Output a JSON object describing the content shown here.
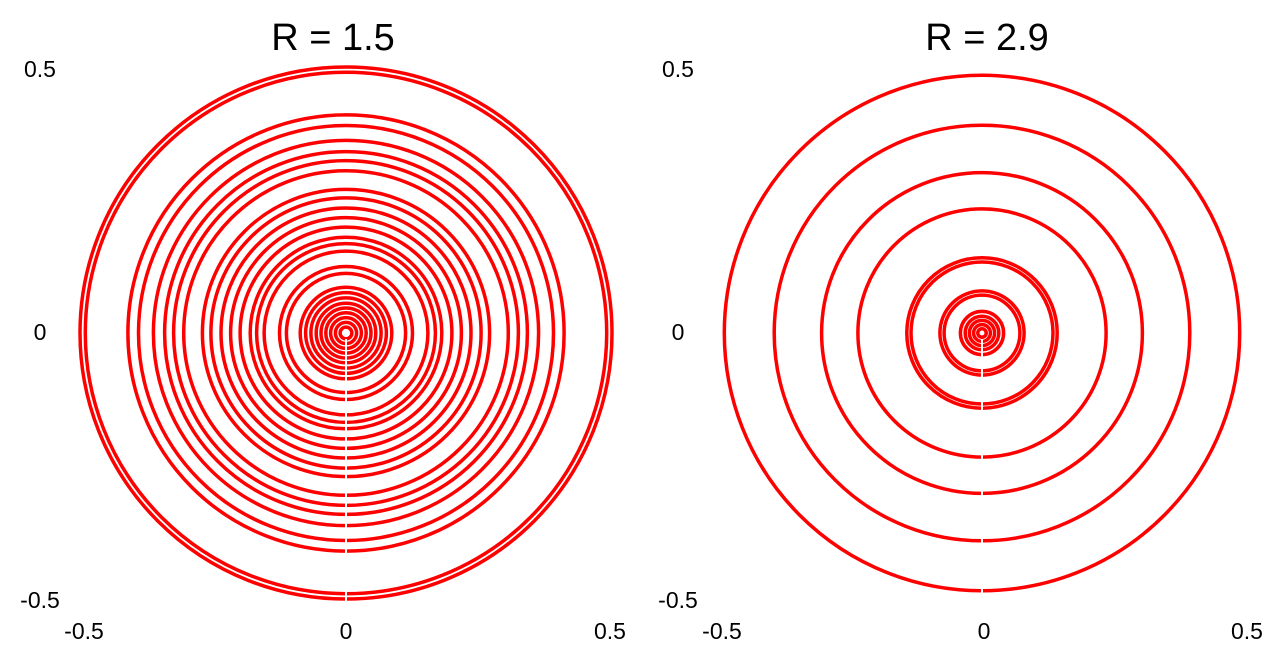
{
  "chart_data": [
    {
      "type": "scatter",
      "title": "R = 1.5",
      "xlim": [
        -0.5,
        0.5
      ],
      "ylim": [
        -0.5,
        0.5
      ],
      "x_ticks": [
        "-0.5",
        "0",
        "0.5"
      ],
      "y_ticks": [
        "0.5",
        "0",
        "-0.5"
      ],
      "grid": false,
      "color": "#ff0000",
      "series": [
        {
          "description_ring_radii": true,
          "radii": [
            0.011,
            0.02,
            0.029,
            0.038,
            0.047,
            0.056,
            0.066,
            0.076,
            0.086,
            0.112,
            0.125,
            0.154,
            0.168,
            0.18,
            0.199,
            0.217,
            0.235,
            0.254,
            0.27,
            0.305,
            0.324,
            0.341,
            0.362,
            0.39,
            0.41,
            0.49,
            0.5
          ]
        }
      ]
    },
    {
      "type": "scatter",
      "title": "R = 2.9",
      "xlim": [
        -0.5,
        0.5
      ],
      "ylim": [
        -0.5,
        0.5
      ],
      "x_ticks": [
        "-0.5",
        "0",
        "0.5"
      ],
      "y_ticks": [
        "0.5",
        "0",
        "-0.5"
      ],
      "grid": false,
      "color": "#ff0000",
      "series": [
        {
          "radii": [
            0.008,
            0.016,
            0.024,
            0.032,
            0.041,
            0.072,
            0.08,
            0.135,
            0.143,
            0.236,
            0.305,
            0.395,
            0.49
          ]
        }
      ]
    }
  ]
}
